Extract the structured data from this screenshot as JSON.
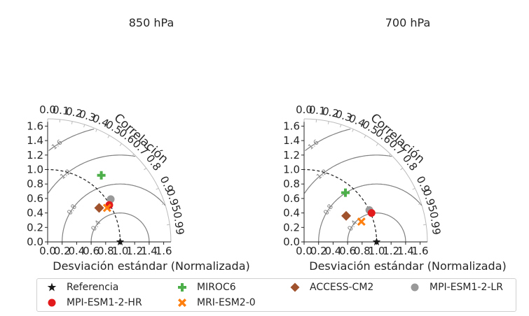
{
  "chart_data": {
    "type": "scatter",
    "subtype": "taylor-diagram",
    "xlabel": "Desviación estándar (Normalizada)",
    "angular_label": "Correlación",
    "std_ticks": [
      "0.0",
      "0.2",
      "0.4",
      "0.6",
      "0.8",
      "1.0",
      "1.2",
      "1.4",
      "1.6"
    ],
    "corr_ticks": [
      "0.0",
      "0.1",
      "0.2",
      "0.3",
      "0.4",
      "0.5",
      "0.6",
      "0.7",
      "0.8",
      "0.9",
      "0.95",
      "0.99"
    ],
    "rms_contour_labels": [
      "0.4",
      "0.8",
      "1.2",
      "1.6"
    ],
    "std_range": [
      0,
      1.7
    ],
    "colors": {
      "Referencia": "#1a1a1a",
      "MPI-ESM1-2-HR": "#e31a1c",
      "MIROC6": "#4daf4a",
      "MRI-ESM2-0": "#ff7f0e",
      "ACCESS-CM2": "#a0522d",
      "MPI-ESM1-2-LR": "#999999"
    },
    "markers": {
      "Referencia": "star",
      "MPI-ESM1-2-HR": "circle",
      "MIROC6": "plus",
      "MRI-ESM2-0": "x",
      "ACCESS-CM2": "diamond",
      "MPI-ESM1-2-LR": "circle"
    },
    "legend": [
      "Referencia",
      "MIROC6",
      "ACCESS-CM2",
      "MPI-ESM1-2-LR",
      "MPI-ESM1-2-HR",
      "MRI-ESM2-0"
    ],
    "panels": [
      {
        "title": "850 hPa",
        "points": [
          {
            "name": "MIROC6",
            "x": 0.74,
            "y": 0.92
          },
          {
            "name": "MPI-ESM1-2-LR",
            "x": 0.87,
            "y": 0.59
          },
          {
            "name": "MPI-ESM1-2-HR",
            "x": 0.85,
            "y": 0.51
          },
          {
            "name": "MRI-ESM2-0",
            "x": 0.82,
            "y": 0.47
          },
          {
            "name": "ACCESS-CM2",
            "x": 0.71,
            "y": 0.47
          },
          {
            "name": "Referencia",
            "x": 1.0,
            "y": 0.0
          }
        ]
      },
      {
        "title": "700 hPa",
        "points": [
          {
            "name": "MIROC6",
            "x": 0.57,
            "y": 0.68
          },
          {
            "name": "MPI-ESM1-2-LR",
            "x": 0.9,
            "y": 0.44
          },
          {
            "name": "MPI-ESM1-2-HR",
            "x": 0.93,
            "y": 0.4
          },
          {
            "name": "MRI-ESM2-0",
            "x": 0.79,
            "y": 0.28
          },
          {
            "name": "ACCESS-CM2",
            "x": 0.58,
            "y": 0.36
          },
          {
            "name": "Referencia",
            "x": 1.0,
            "y": 0.0
          }
        ]
      }
    ]
  }
}
